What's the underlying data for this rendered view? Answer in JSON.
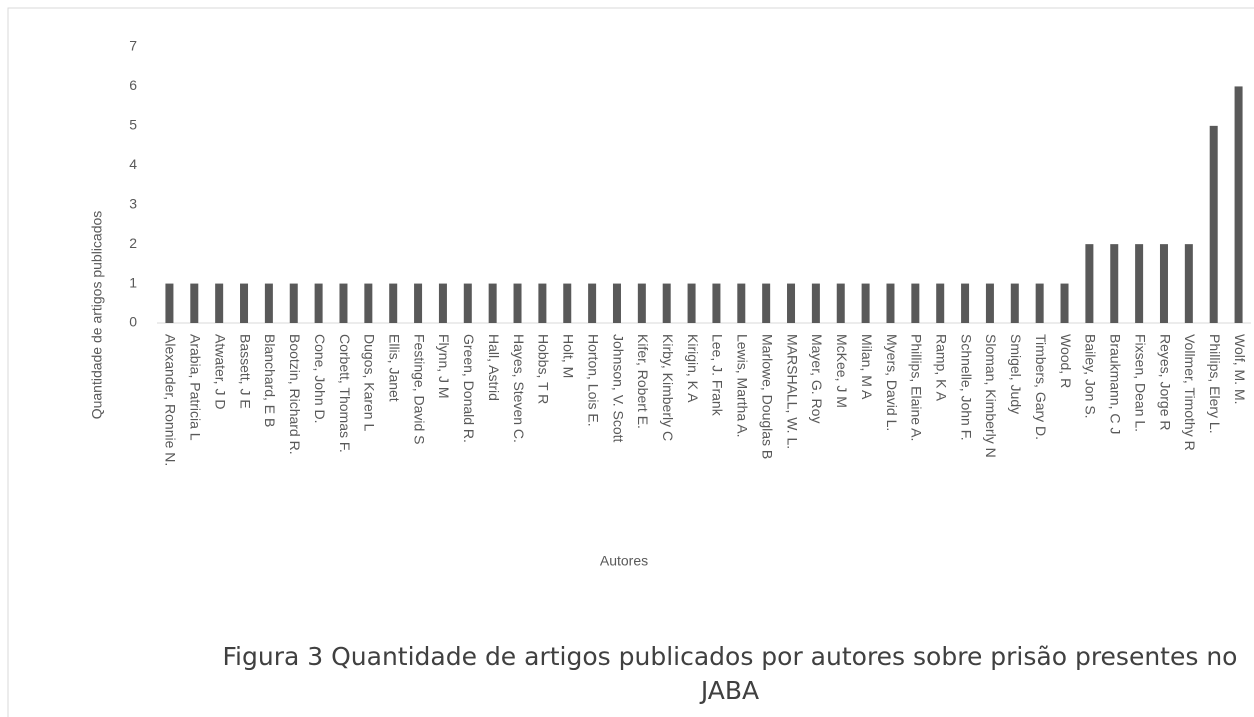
{
  "chart_data": {
    "type": "bar",
    "y_label": "Quantidade de artigos publicados",
    "x_label": "Autores",
    "caption": "Figura 3 Quantidade de artigos publicados por autores sobre prisão presentes no JABA",
    "categories": [
      "Alexander, Ronnie N.",
      "Arabia, Patricia L",
      "Atwater, J D",
      "Bassett, J E",
      "Blanchard, E B",
      "Bootzin, Richard R.",
      "Cone, John D.",
      "Corbett, Thomas F.",
      "Dugos, Karen L",
      "Ellis, Janet",
      "Festinge, David S",
      "Flynn, J M",
      "Green, Donald R.",
      "Hall, Astrid",
      "Hayes, Steven C.",
      "Hobbs, T R",
      "Holt, M",
      "Horton, Lois E.",
      "Johnson, V. Scott",
      "Kifer, Robert E.",
      "Kirby, Kimberly C",
      "Kirigin, K A",
      "Lee, J. Frank",
      "Lewis, Martha A.",
      "Marlowe, Douglas B",
      "MARSHALL, W. L.",
      "Mayer, G. Roy",
      "McKee, J M",
      "Milan, M A",
      "Myers, David L.",
      "Phillips, Elaine A.",
      "Ramp, K A",
      "Schnelle, John F.",
      "Sloman, Kimberly N",
      "Smigel, Judy",
      "Timbers, Gary D.",
      "Wood, R",
      "Bailey, Jon S.",
      "Braukmann, C J",
      "Fixsen, Dean L.",
      "Reyes, Jorge R",
      "Vollmer, Timothy R",
      "Phillips, Elery L.",
      "Wolf, M. M."
    ],
    "values": [
      1,
      1,
      1,
      1,
      1,
      1,
      1,
      1,
      1,
      1,
      1,
      1,
      1,
      1,
      1,
      1,
      1,
      1,
      1,
      1,
      1,
      1,
      1,
      1,
      1,
      1,
      1,
      1,
      1,
      1,
      1,
      1,
      1,
      1,
      1,
      1,
      1,
      2,
      2,
      2,
      2,
      2,
      5,
      6
    ],
    "color": "#595959",
    "ylim": [
      0,
      7
    ],
    "yticks": [
      0,
      1,
      2,
      3,
      4,
      5,
      6,
      7
    ],
    "grid": false
  }
}
